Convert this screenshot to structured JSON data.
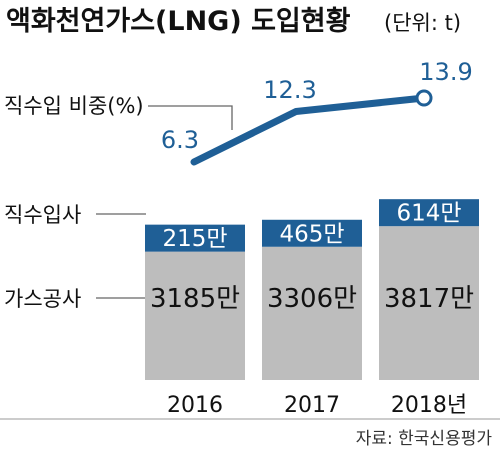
{
  "title": {
    "main": "액화천연가스(LNG) 도입현황",
    "unit": "(단위: t)"
  },
  "legend_labels": {
    "direct_ratio": "직수입 비중(%)",
    "direct_importers": "직수입사",
    "kogas": "가스공사"
  },
  "source": "자료: 한국신용평가",
  "colors": {
    "bar_gray": "#bdbdbd",
    "bar_blue": "#1f5f96",
    "line_blue": "#1f5f96",
    "divider": "#999999"
  },
  "chart_data": {
    "type": "bar",
    "stacked": true,
    "categories": [
      "2016",
      "2017",
      "2018년"
    ],
    "series": [
      {
        "name": "가스공사",
        "values": [
          3185,
          3306,
          3817
        ],
        "labels": [
          "3185만",
          "3306만",
          "3817만"
        ]
      },
      {
        "name": "직수입사",
        "values": [
          215,
          465,
          614
        ],
        "labels": [
          "215만",
          "465만",
          "614만"
        ]
      }
    ],
    "overlay_line": {
      "name": "직수입 비중(%)",
      "values": [
        6.3,
        12.3,
        13.9
      ],
      "labels": [
        "6.3",
        "12.3",
        "13.9"
      ]
    }
  }
}
